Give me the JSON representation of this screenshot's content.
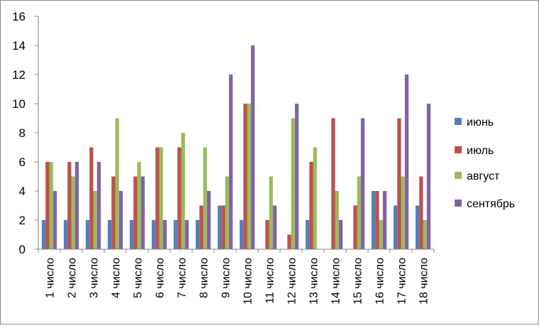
{
  "chart_data": {
    "type": "bar",
    "title": "",
    "xlabel": "",
    "ylabel": "",
    "ylim": [
      0,
      16
    ],
    "yticks": [
      0,
      2,
      4,
      6,
      8,
      10,
      12,
      14,
      16
    ],
    "grid": false,
    "legend_position": "right",
    "categories": [
      "1 число",
      "2 число",
      "3 число",
      "4 число",
      "5 число",
      "6 число",
      "7 число",
      "8 число",
      "9 число",
      "10 число",
      "11 число",
      "12 число",
      "13 число",
      "14 число",
      "15 число",
      "16 число",
      "17 число",
      "18 число"
    ],
    "series": [
      {
        "name": "июнь",
        "color": "#4f81bd",
        "values": [
          2,
          2,
          2,
          2,
          2,
          2,
          2,
          2,
          3,
          2,
          0,
          0,
          2,
          0,
          0,
          4,
          3,
          3
        ]
      },
      {
        "name": "июль",
        "color": "#c0504d",
        "values": [
          6,
          6,
          7,
          5,
          5,
          7,
          7,
          3,
          3,
          10,
          2,
          1,
          6,
          9,
          3,
          4,
          9,
          5
        ]
      },
      {
        "name": "август",
        "color": "#9bbb59",
        "values": [
          6,
          5,
          4,
          9,
          6,
          7,
          8,
          7,
          5,
          10,
          5,
          9,
          7,
          4,
          5,
          2,
          5,
          2
        ]
      },
      {
        "name": "сентябрь",
        "color": "#8064a2",
        "values": [
          4,
          6,
          6,
          4,
          5,
          2,
          2,
          4,
          12,
          14,
          3,
          10,
          0,
          2,
          9,
          4,
          12,
          10
        ]
      }
    ]
  }
}
